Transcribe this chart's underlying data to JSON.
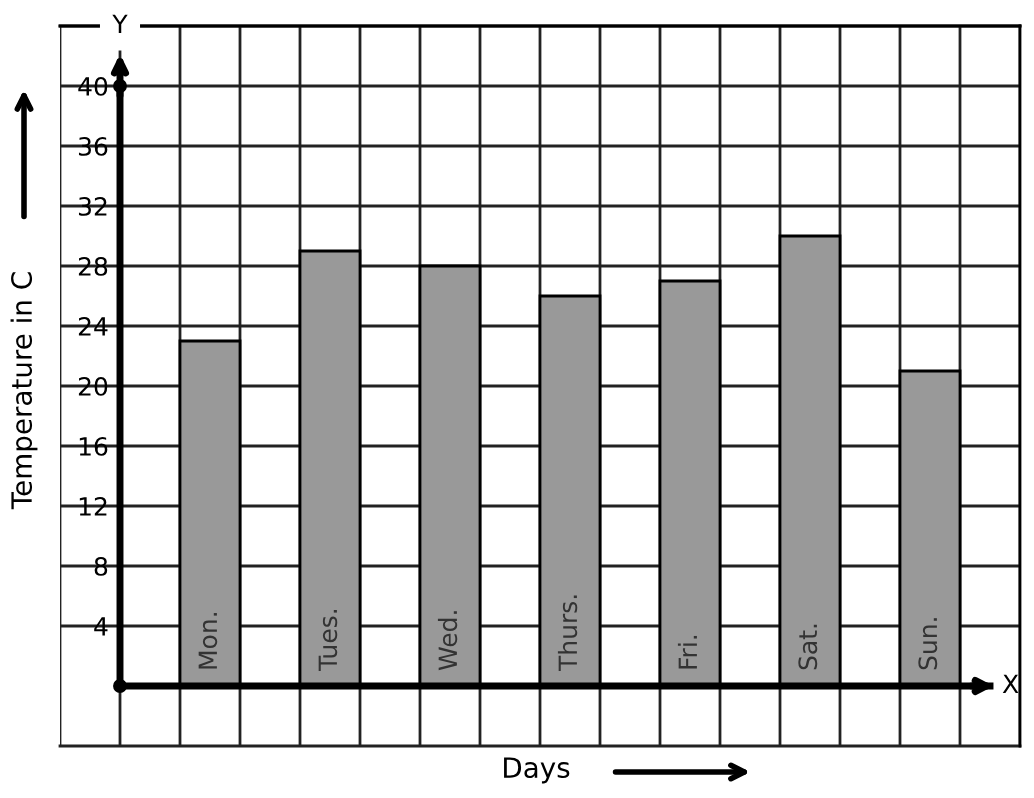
{
  "chart_data": {
    "type": "bar",
    "xlabel": "Days",
    "ylabel": "Temperature in C",
    "categories": [
      "Mon.",
      "Tues.",
      "Wed.",
      "Thurs.",
      "Fri.",
      "Sat.",
      "Sun."
    ],
    "values": [
      23,
      29,
      28,
      26,
      27,
      30,
      21
    ],
    "color": "#999999",
    "ylim": [
      -4,
      44
    ],
    "yticks": [
      4,
      8,
      12,
      16,
      20,
      24,
      28,
      32,
      36,
      40
    ],
    "grid": true,
    "annotations": [
      "Y",
      "X"
    ]
  }
}
